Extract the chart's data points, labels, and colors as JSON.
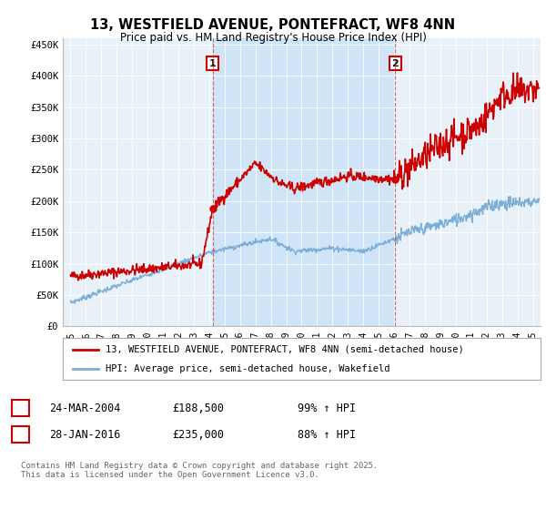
{
  "title": "13, WESTFIELD AVENUE, PONTEFRACT, WF8 4NN",
  "subtitle": "Price paid vs. HM Land Registry's House Price Index (HPI)",
  "ylabel_ticks": [
    "£0",
    "£50K",
    "£100K",
    "£150K",
    "£200K",
    "£250K",
    "£300K",
    "£350K",
    "£400K",
    "£450K"
  ],
  "ytick_values": [
    0,
    50000,
    100000,
    150000,
    200000,
    250000,
    300000,
    350000,
    400000,
    450000
  ],
  "ylim": [
    0,
    460000
  ],
  "xlim_start": 1994.5,
  "xlim_end": 2025.5,
  "background_color": "#ffffff",
  "plot_bg_color": "#e8f0f8",
  "highlight_color": "#d0e4f7",
  "red_line_color": "#cc0000",
  "blue_line_color": "#7aaed6",
  "marker1_x": 2004.23,
  "marker1_y": 188500,
  "marker2_x": 2016.08,
  "marker2_y": 235000,
  "annotation1": "1",
  "annotation2": "2",
  "legend_red_label": "13, WESTFIELD AVENUE, PONTEFRACT, WF8 4NN (semi-detached house)",
  "legend_blue_label": "HPI: Average price, semi-detached house, Wakefield",
  "table_row1": [
    "1",
    "24-MAR-2004",
    "£188,500",
    "99% ↑ HPI"
  ],
  "table_row2": [
    "2",
    "28-JAN-2016",
    "£235,000",
    "88% ↑ HPI"
  ],
  "footer": "Contains HM Land Registry data © Crown copyright and database right 2025.\nThis data is licensed under the Open Government Licence v3.0.",
  "red_seed": 42,
  "blue_seed": 7
}
